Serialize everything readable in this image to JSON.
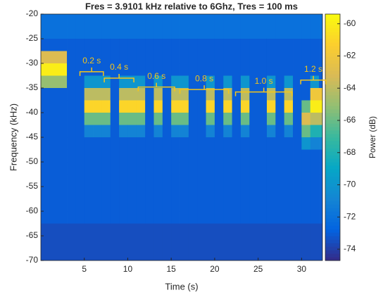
{
  "chart_data": {
    "type": "heatmap",
    "title": "Fres = 3.9101 kHz relative to 6Ghz, Tres = 100 ms",
    "xlabel": "Time (s)",
    "ylabel": "Frequency (kHz)",
    "colorbar_label": "Power (dB)",
    "colormap": "parula",
    "xlim": [
      0,
      32.4
    ],
    "ylim": [
      -70,
      -20
    ],
    "xticks": [
      5,
      10,
      15,
      20,
      25,
      30
    ],
    "yticks": [
      -20,
      -25,
      -30,
      -35,
      -40,
      -45,
      -50,
      -55,
      -60,
      -65,
      -70
    ],
    "clim": [
      -74.7,
      -59.4
    ],
    "cticks": [
      -60,
      -62,
      -64,
      -66,
      -68,
      -70,
      -72,
      -74
    ],
    "x": [
      0.5,
      1.5,
      2.5,
      3.5,
      4.5,
      5.5,
      6.5,
      7.5,
      8.5,
      9.5,
      10.5,
      11.5,
      12.5,
      13.5,
      14.5,
      15.5,
      16.5,
      17.5,
      18.5,
      19.5,
      20.5,
      21.5,
      22.5,
      23.5,
      24.5,
      25.5,
      26.5,
      27.5,
      28.5,
      29.5,
      30.5,
      31.5,
      32.5
    ],
    "y": [
      -21.25,
      -23.75,
      -26.25,
      -28.75,
      -31.25,
      -33.75,
      -36.25,
      -38.75,
      -41.25,
      -43.75,
      -46.25,
      -48.75,
      -51.25,
      -53.75,
      -56.25,
      -58.75,
      -61.25,
      -63.75,
      -66.25,
      -68.75
    ],
    "values": [
      [
        -72,
        -72,
        -72,
        -72,
        -72,
        -72,
        -72,
        -72,
        -72,
        -72,
        -72,
        -72,
        -72,
        -72,
        -72,
        -72,
        -72,
        -72,
        -72,
        -72,
        -72,
        -72,
        -72,
        -72,
        -72,
        -72,
        -72,
        -72,
        -72,
        -72,
        -72,
        -72,
        -72
      ],
      [
        -72,
        -72,
        -72,
        -72,
        -72,
        -72,
        -72,
        -72,
        -72,
        -72,
        -72,
        -72,
        -72,
        -72,
        -72,
        -72,
        -72,
        -72,
        -72,
        -72,
        -72,
        -72,
        -72,
        -72,
        -72,
        -72,
        -72,
        -72,
        -72,
        -72,
        -72,
        -72,
        -72
      ],
      [
        -73,
        -73,
        -73,
        -73,
        -73,
        -73,
        -73,
        -73,
        -73,
        -73,
        -73,
        -73,
        -73,
        -73,
        -73,
        -73,
        -73,
        -73,
        -73,
        -73,
        -73,
        -73,
        -73,
        -73,
        -73,
        -73,
        -73,
        -73,
        -73,
        -73,
        -73,
        -73,
        -73
      ],
      [
        -63,
        -63,
        -63,
        -73,
        -73,
        -73,
        -73,
        -73,
        -73,
        -73,
        -73,
        -73,
        -73,
        -73,
        -73,
        -73,
        -73,
        -73,
        -73,
        -73,
        -73,
        -73,
        -73,
        -73,
        -73,
        -73,
        -73,
        -73,
        -73,
        -73,
        -73,
        -73,
        -73
      ],
      [
        -60,
        -60,
        -60,
        -73,
        -73,
        -73,
        -73,
        -73,
        -73,
        -73,
        -73,
        -73,
        -73,
        -73,
        -73,
        -73,
        -73,
        -73,
        -73,
        -73,
        -73,
        -73,
        -73,
        -73,
        -73,
        -73,
        -73,
        -73,
        -73,
        -73,
        -73,
        -73,
        -73
      ],
      [
        -65,
        -65,
        -65,
        -73,
        -73,
        -70,
        -70,
        -70,
        -73,
        -70,
        -70,
        -70,
        -73,
        -70,
        -73,
        -70,
        -70,
        -73,
        -73,
        -70,
        -73,
        -70,
        -73,
        -70,
        -73,
        -73,
        -70,
        -73,
        -70,
        -73,
        -73,
        -70,
        -73
      ],
      [
        -73,
        -73,
        -73,
        -73,
        -73,
        -64,
        -64,
        -64,
        -73,
        -64,
        -64,
        -64,
        -73,
        -64,
        -73,
        -64,
        -64,
        -73,
        -73,
        -64,
        -73,
        -64,
        -73,
        -64,
        -73,
        -73,
        -64,
        -73,
        -64,
        -73,
        -73,
        -62,
        -62
      ],
      [
        -73,
        -73,
        -73,
        -73,
        -73,
        -61,
        -61,
        -61,
        -73,
        -61,
        -61,
        -61,
        -73,
        -61,
        -73,
        -61,
        -61,
        -73,
        -73,
        -61,
        -73,
        -61,
        -73,
        -61,
        -73,
        -73,
        -61,
        -73,
        -61,
        -73,
        -66,
        -60,
        -60
      ],
      [
        -73,
        -73,
        -73,
        -73,
        -73,
        -66,
        -66,
        -66,
        -73,
        -66,
        -66,
        -66,
        -73,
        -66,
        -73,
        -66,
        -66,
        -73,
        -73,
        -66,
        -73,
        -66,
        -73,
        -66,
        -73,
        -73,
        -66,
        -73,
        -66,
        -73,
        -63,
        -64,
        -64
      ],
      [
        -73,
        -73,
        -73,
        -73,
        -73,
        -71,
        -71,
        -71,
        -73,
        -71,
        -71,
        -71,
        -73,
        -71,
        -73,
        -71,
        -71,
        -73,
        -73,
        -71,
        -73,
        -71,
        -73,
        -71,
        -73,
        -73,
        -71,
        -73,
        -71,
        -73,
        -66,
        -68,
        -68
      ],
      [
        -73,
        -73,
        -73,
        -73,
        -73,
        -73,
        -73,
        -73,
        -73,
        -73,
        -73,
        -73,
        -73,
        -73,
        -73,
        -73,
        -73,
        -73,
        -73,
        -73,
        -73,
        -73,
        -73,
        -73,
        -73,
        -73,
        -73,
        -73,
        -73,
        -73,
        -70,
        -71,
        -71
      ],
      [
        -73,
        -73,
        -73,
        -73,
        -73,
        -73,
        -73,
        -73,
        -73,
        -73,
        -73,
        -73,
        -73,
        -73,
        -73,
        -73,
        -73,
        -73,
        -73,
        -73,
        -73,
        -73,
        -73,
        -73,
        -73,
        -73,
        -73,
        -73,
        -73,
        -73,
        -73,
        -73,
        -73
      ],
      [
        -73,
        -73,
        -73,
        -73,
        -73,
        -73,
        -73,
        -73,
        -73,
        -73,
        -73,
        -73,
        -73,
        -73,
        -73,
        -73,
        -73,
        -73,
        -73,
        -73,
        -73,
        -73,
        -73,
        -73,
        -73,
        -73,
        -73,
        -73,
        -73,
        -73,
        -73,
        -73,
        -73
      ],
      [
        -73,
        -73,
        -73,
        -73,
        -73,
        -73,
        -73,
        -73,
        -73,
        -73,
        -73,
        -73,
        -73,
        -73,
        -73,
        -73,
        -73,
        -73,
        -73,
        -73,
        -73,
        -73,
        -73,
        -73,
        -73,
        -73,
        -73,
        -73,
        -73,
        -73,
        -73,
        -73,
        -73
      ],
      [
        -73,
        -73,
        -73,
        -73,
        -73,
        -73,
        -73,
        -73,
        -73,
        -73,
        -73,
        -73,
        -73,
        -73,
        -73,
        -73,
        -73,
        -73,
        -73,
        -73,
        -73,
        -73,
        -73,
        -73,
        -73,
        -73,
        -73,
        -73,
        -73,
        -73,
        -73,
        -73,
        -73
      ],
      [
        -73,
        -73,
        -73,
        -73,
        -73,
        -73,
        -73,
        -73,
        -73,
        -73,
        -73,
        -73,
        -73,
        -73,
        -73,
        -73,
        -73,
        -73,
        -73,
        -73,
        -73,
        -73,
        -73,
        -73,
        -73,
        -73,
        -73,
        -73,
        -73,
        -73,
        -73,
        -73,
        -73
      ],
      [
        -73,
        -73,
        -73,
        -73,
        -73,
        -73,
        -73,
        -73,
        -73,
        -73,
        -73,
        -73,
        -73,
        -73,
        -73,
        -73,
        -73,
        -73,
        -73,
        -73,
        -73,
        -73,
        -73,
        -73,
        -73,
        -73,
        -73,
        -73,
        -73,
        -73,
        -73,
        -73,
        -73
      ],
      [
        -73.5,
        -73.5,
        -73.5,
        -73.5,
        -73.5,
        -73.5,
        -73.5,
        -73.5,
        -73.5,
        -73.5,
        -73.5,
        -73.5,
        -73.5,
        -73.5,
        -73.5,
        -73.5,
        -73.5,
        -73.5,
        -73.5,
        -73.5,
        -73.5,
        -73.5,
        -73.5,
        -73.5,
        -73.5,
        -73.5,
        -73.5,
        -73.5,
        -73.5,
        -73.5,
        -73.5,
        -73.5,
        -73.5
      ],
      [
        -73.5,
        -73.5,
        -73.5,
        -73.5,
        -73.5,
        -73.5,
        -73.5,
        -73.5,
        -73.5,
        -73.5,
        -73.5,
        -73.5,
        -73.5,
        -73.5,
        -73.5,
        -73.5,
        -73.5,
        -73.5,
        -73.5,
        -73.5,
        -73.5,
        -73.5,
        -73.5,
        -73.5,
        -73.5,
        -73.5,
        -73.5,
        -73.5,
        -73.5,
        -73.5,
        -73.5,
        -73.5,
        -73.5
      ],
      [
        -73.5,
        -73.5,
        -73.5,
        -73.5,
        -73.5,
        -73.5,
        -73.5,
        -73.5,
        -73.5,
        -73.5,
        -73.5,
        -73.5,
        -73.5,
        -73.5,
        -73.5,
        -73.5,
        -73.5,
        -73.5,
        -73.5,
        -73.5,
        -73.5,
        -73.5,
        -73.5,
        -73.5,
        -73.5,
        -73.5,
        -73.5,
        -73.5,
        -73.5,
        -73.5,
        -73.5,
        -73.5,
        -73.5
      ]
    ],
    "annotations": [
      {
        "text": "0.2 s",
        "x": [
          4.5,
          7.2
        ],
        "y": -31.7
      },
      {
        "text": "0.4 s",
        "x": [
          7.3,
          10.7
        ],
        "y": -33
      },
      {
        "text": "0.6 s",
        "x": [
          11.2,
          15.4
        ],
        "y": -34.8
      },
      {
        "text": "0.8 s",
        "x": [
          16,
          21.6
        ],
        "y": -35.3
      },
      {
        "text": "1.0 s",
        "x": [
          22.4,
          28.9
        ],
        "y": -35.8
      },
      {
        "text": "1.2 s",
        "x": [
          29.9,
          32.8
        ],
        "y": -33.4
      }
    ],
    "annotation_color": "#f5c518"
  }
}
